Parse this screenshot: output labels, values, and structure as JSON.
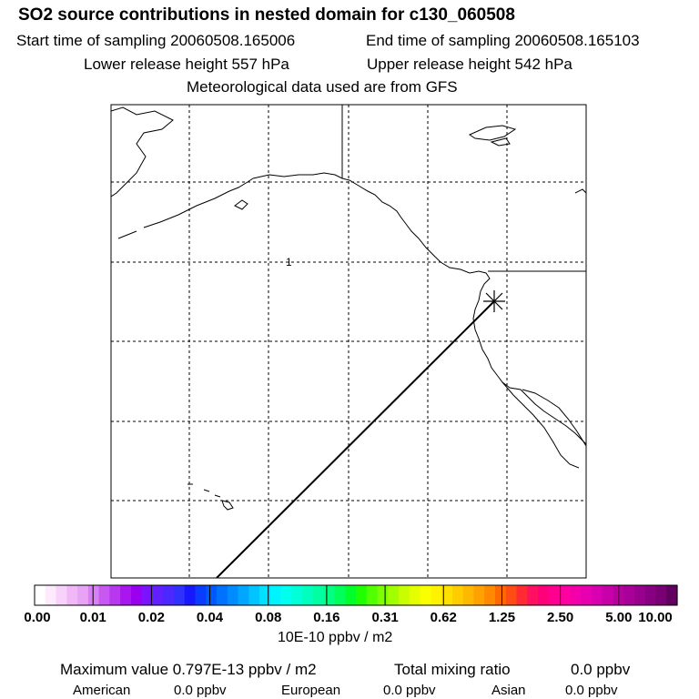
{
  "header": {
    "title": "SO2 source contributions in nested domain for c130_060508",
    "start_label": "Start time of sampling 20060508.165006",
    "end_label": "End time of sampling 20060508.165103",
    "lower_label": "Lower release height  557 hPa",
    "upper_label": "Upper release height  542 hPa",
    "met_label": "Meteorological data used are from GFS"
  },
  "map": {
    "contour_label": "1",
    "receptor_marker": "asterisk",
    "trajectory_color": "#000000"
  },
  "colorbar": {
    "ticks": [
      "0.00",
      "0.01",
      "0.02",
      "0.04",
      "0.08",
      "0.16",
      "0.31",
      "0.62",
      "1.25",
      "2.50",
      "5.00",
      "10.00"
    ],
    "colors": [
      "#ffffff",
      "#fdebfd",
      "#f8d2fb",
      "#f1b8f8",
      "#e8a3f6",
      "#d880f4",
      "#c858f2",
      "#b838f0",
      "#a818ee",
      "#9a00f0",
      "#7a14ff",
      "#6020ff",
      "#4a28ff",
      "#3030ff",
      "#1818ff",
      "#0a3cff",
      "#0058ff",
      "#0072ff",
      "#008cff",
      "#00a6ff",
      "#00c4ff",
      "#00e0ff",
      "#00f4ff",
      "#00ffee",
      "#00ffd6",
      "#00ffbe",
      "#00ffa2",
      "#00ff82",
      "#00ff5a",
      "#00ff2a",
      "#20ff00",
      "#50ff00",
      "#7cff00",
      "#a2ff00",
      "#c8ff00",
      "#e6ff00",
      "#faff00",
      "#fff200",
      "#ffe000",
      "#ffcc00",
      "#ffb800",
      "#ffa200",
      "#ff8a00",
      "#ff6a00",
      "#ff4c14",
      "#ff2a32",
      "#ff1060",
      "#ff007a",
      "#ff0090",
      "#ff00a0",
      "#f400aa",
      "#e800b0",
      "#d800b0",
      "#c800a8",
      "#b800a0",
      "#a80098",
      "#98008e",
      "#880082",
      "#780074",
      "#620060"
    ],
    "units": "10E-10 ppbv / m2"
  },
  "footer": {
    "max_label": "Maximum value  0.797E-13 ppbv / m2",
    "total_label": "Total mixing ratio",
    "total_value": "0.0 ppbv",
    "american_label": "American",
    "american_value": "0.0 ppbv",
    "european_label": "European",
    "european_value": "0.0 ppbv",
    "asian_label": "Asian",
    "asian_value": "0.0 ppbv"
  }
}
